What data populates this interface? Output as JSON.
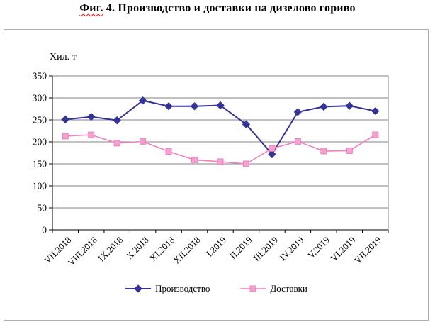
{
  "title": {
    "prefix": "Фиг.",
    "rest": " 4. Производство и доставки на дизелово гориво"
  },
  "chart_data": {
    "type": "line",
    "title": "Фиг. 4. Производство и доставки на дизелово гориво",
    "y_axis_title": "Хил. т",
    "xlabel": "",
    "ylabel": "Хил. т",
    "categories": [
      "VII.2018",
      "VIII.2018",
      "IX.2018",
      "X.2018",
      "XI.2018",
      "XII.2018",
      "I.2019",
      "II.2019",
      "III.2019",
      "IV.2019",
      "V.2019",
      "VI.2019",
      "VII.2019"
    ],
    "series": [
      {
        "name": "Производство",
        "marker": "diamond",
        "color": "#333399",
        "marker_fill": "#333399",
        "values": [
          251,
          257,
          249,
          294,
          281,
          281,
          283,
          240,
          172,
          268,
          280,
          282,
          270
        ]
      },
      {
        "name": "Доставки",
        "marker": "square",
        "color": "#f27fc0",
        "marker_fill": "#f6a2ce",
        "values": [
          213,
          216,
          197,
          201,
          178,
          159,
          155,
          150,
          185,
          201,
          179,
          180,
          216
        ]
      }
    ],
    "ylim": [
      0,
      350
    ],
    "ytick_step": 50,
    "ytick_labels": [
      "0",
      "50",
      "100",
      "150",
      "200",
      "250",
      "300",
      "350"
    ],
    "grid": true,
    "gridline_color": "#848284",
    "axis_color": "#000000",
    "plot_border_color": "#848284",
    "legend_position": "bottom"
  }
}
